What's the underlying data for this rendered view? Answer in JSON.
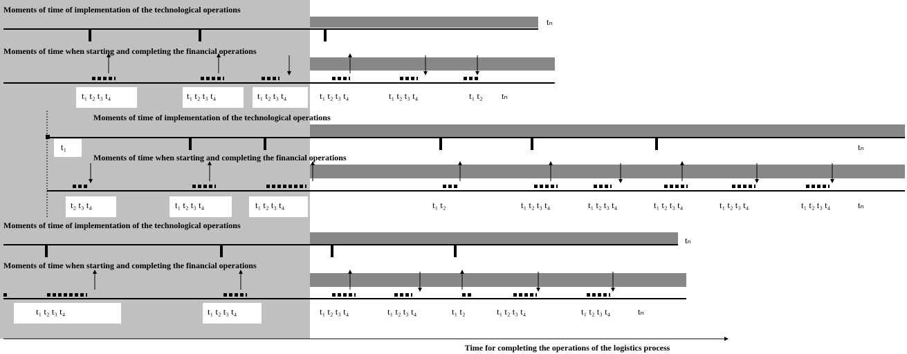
{
  "panels": [
    {
      "tech_title": "Moments of time of implementation of the technological operations",
      "fin_title": "Moments of time when starting and completing the financial operations",
      "tech_end": "tₙ",
      "labels": [
        "t₁ t₂ t₃ t₄",
        "t₁ t₂ t₃ t₄",
        "t₁ t₂ t₃ t₄",
        "t₁ t₂ t₃ t₄",
        "t₁ t₂ t₃ t₄",
        "t₁ t₂",
        "tₙ"
      ]
    },
    {
      "tech_title": "Moments of time of implementation of the technological operations",
      "fin_title": "Moments of time when starting and completing the financial operations",
      "start": "t₁",
      "tech_end": "tₙ",
      "labels": [
        "t₂ t₃ t₄",
        "t₁ t₂ t₃ t₄",
        "t₁ t₂ t₃ t₄",
        "t₁ t₂",
        "t₁ t₂ t₃ t₄",
        "t₁ t₂ t₃ t₄",
        "t₁ t₂ t₃ t₄",
        "t₁ t₂ t₃ t₄",
        "t₁ t₂ t₃ t₄",
        "tₙ"
      ]
    },
    {
      "tech_title": "Moments of time of implementation of the technological operations",
      "fin_title": "Moments of time when starting and completing the financial operations",
      "tech_end": "tₙ",
      "labels": [
        "t₁ t₂ t₃ t₄",
        "t₁ t₂ t₃ t₄",
        "t₁ t₂ t₃ t₄",
        "t₁ t₂ t₃ t₄",
        "t₁ t₂",
        "t₁ t₂ t₃ t₄",
        "t₁ t₂ t₃ t₄",
        "tₙ"
      ]
    }
  ],
  "axis_label": "Time for completing the operations of the logistics process"
}
